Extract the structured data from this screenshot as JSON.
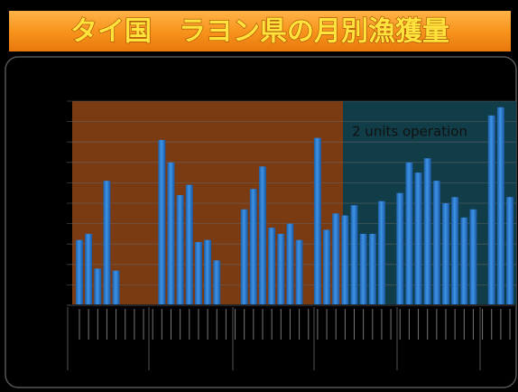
{
  "chart_data": {
    "type": "bar",
    "title": "タイ国　ラヨン県の月別漁獲量",
    "annotation": "2 units operation",
    "categories": [
      null,
      null,
      null,
      null,
      null,
      null,
      null,
      null,
      null,
      null,
      null,
      null,
      null,
      null,
      null,
      null,
      null,
      null,
      null,
      null,
      null,
      null,
      null,
      null,
      null,
      null,
      null,
      null,
      null,
      null,
      null,
      null,
      null,
      null,
      null,
      null,
      null,
      null,
      null,
      null,
      null,
      null,
      null,
      null,
      null,
      null,
      null,
      null
    ],
    "values": [
      3.2,
      3.5,
      1.8,
      6.1,
      1.7,
      0,
      0,
      0,
      0,
      8.1,
      7.0,
      5.4,
      5.9,
      3.1,
      3.2,
      2.2,
      0,
      0,
      4.7,
      5.7,
      6.8,
      3.8,
      3.5,
      4.0,
      3.2,
      0,
      8.2,
      3.7,
      4.5,
      4.4,
      4.9,
      3.5,
      3.5,
      5.1,
      0,
      5.5,
      7.0,
      6.5,
      7.2,
      6.1,
      5.0,
      5.3,
      4.3,
      4.7,
      0,
      9.3,
      9.7,
      5.3
    ],
    "color": "#2f80d4",
    "ylim": [
      0,
      10
    ],
    "yticks": [
      0,
      1,
      2,
      3,
      4,
      5,
      6,
      7,
      8,
      9,
      10
    ],
    "grid": true
  }
}
